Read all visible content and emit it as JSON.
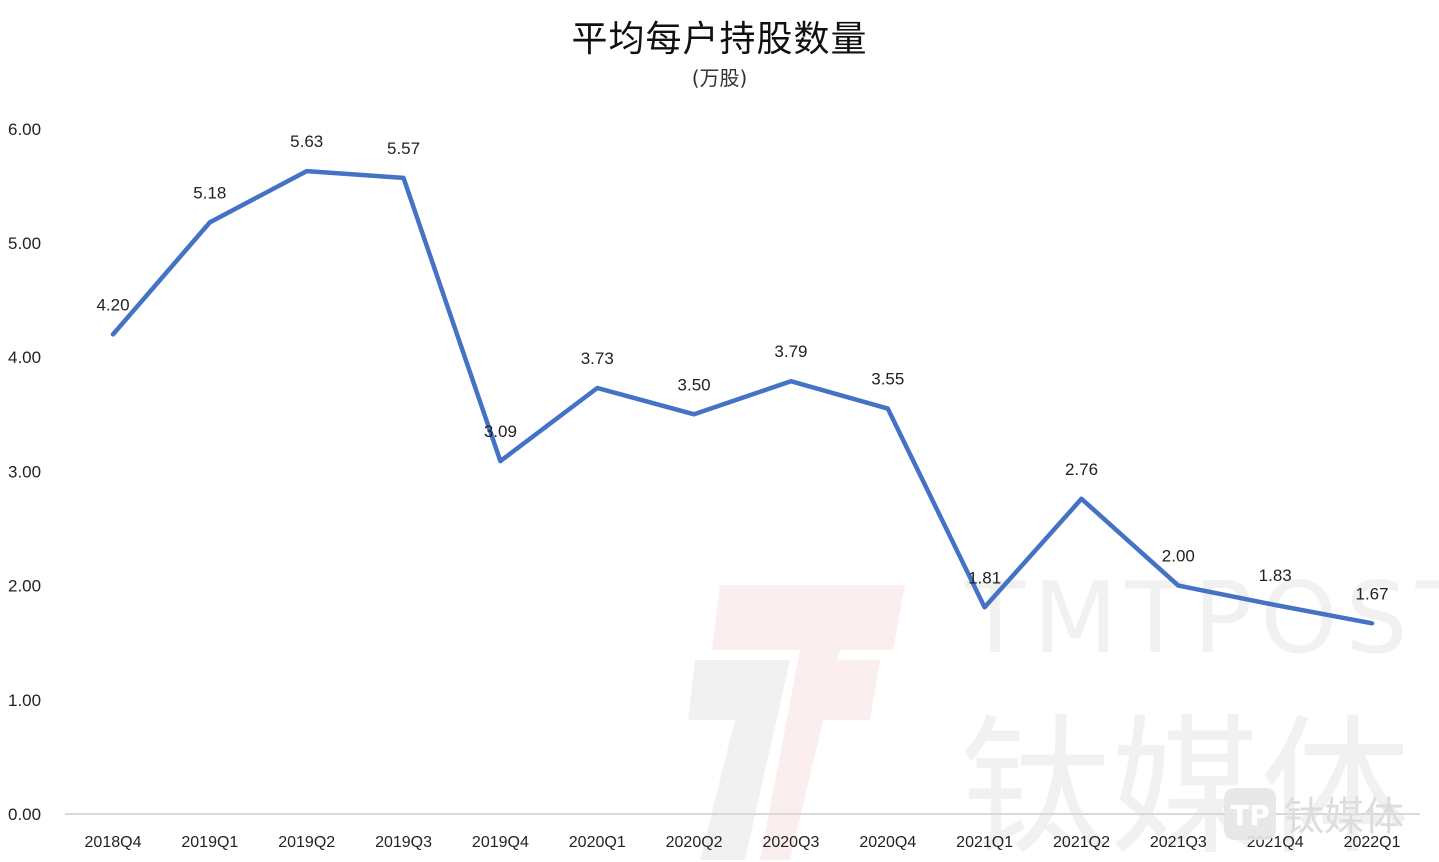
{
  "chart_data": {
    "type": "line",
    "title": "平均每户持股数量",
    "subtitle": "(万股)",
    "xlabel": "",
    "ylabel": "",
    "ylim": [
      0,
      6
    ],
    "yticks": [
      "0.00",
      "1.00",
      "2.00",
      "3.00",
      "4.00",
      "5.00",
      "6.00"
    ],
    "grid": false,
    "legend": null,
    "categories": [
      "2018Q4",
      "2019Q1",
      "2019Q2",
      "2019Q3",
      "2019Q4",
      "2020Q1",
      "2020Q2",
      "2020Q3",
      "2020Q4",
      "2021Q1",
      "2021Q2",
      "2021Q3",
      "2021Q4",
      "2022Q1"
    ],
    "series": [
      {
        "name": "平均每户持股数量",
        "color": "#4472C4",
        "values": [
          4.2,
          5.18,
          5.63,
          5.57,
          3.09,
          3.73,
          3.5,
          3.79,
          3.55,
          1.81,
          2.76,
          2.0,
          1.83,
          1.67
        ],
        "labels": [
          "4.20",
          "5.18",
          "5.63",
          "5.57",
          "3.09",
          "3.73",
          "3.50",
          "3.79",
          "3.55",
          "1.81",
          "2.76",
          "2.00",
          "1.83",
          "1.67"
        ]
      }
    ]
  },
  "watermark": {
    "brand_en": "TMTPOST",
    "brand_cn": "钛媒体",
    "logo_badge_text": "钛媒体"
  },
  "colors": {
    "line": "#4472C4",
    "axis": "#d9d9d9",
    "text": "#222222",
    "watermark_gray": "#f1f1f1",
    "watermark_red": "#fbeeee"
  }
}
